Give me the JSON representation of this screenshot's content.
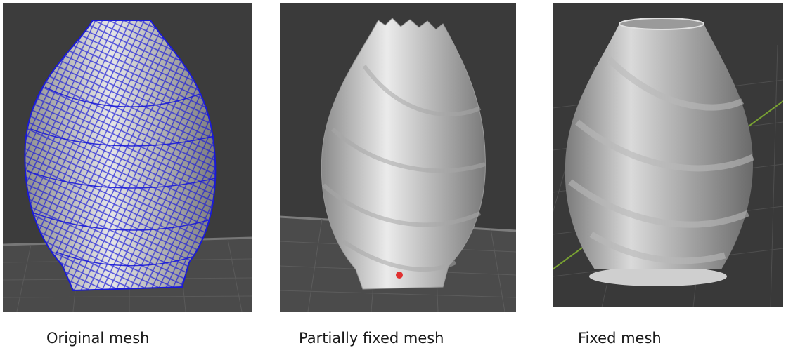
{
  "captions": {
    "original": "Original mesh",
    "partial": "Partially fixed mesh",
    "fixed": "Fixed mesh"
  },
  "colors": {
    "page_background": "#ffffff",
    "viewport_background": "#3c3c3c",
    "floor_grid": "#595959",
    "mesh_surface": "#d2d2d2",
    "wireframe_overlay": "#1a1ad8",
    "error_marker": "#e03030",
    "fixed_viewport_background": "#393939",
    "axis_green": "#79a232"
  },
  "icons": {
    "original": "vase-mesh-wireframe",
    "partial": "vase-mesh-partial",
    "fixed": "vase-mesh-fixed"
  }
}
